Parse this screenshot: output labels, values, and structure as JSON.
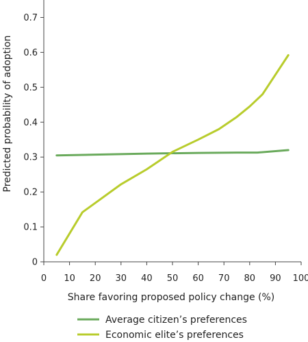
{
  "chart_data": {
    "type": "line",
    "title": "",
    "xlabel": "Share favoring proposed policy change (%)",
    "ylabel": "Predicted probability of adoption",
    "xlim": [
      0,
      100
    ],
    "ylim": [
      0,
      0.75
    ],
    "xticks": [
      0,
      10,
      20,
      30,
      40,
      50,
      60,
      70,
      80,
      90,
      100
    ],
    "yticks": [
      0,
      0.1,
      0.2,
      0.3,
      0.4,
      0.5,
      0.6,
      0.7
    ],
    "ytick_labels": [
      "0",
      "0.1",
      "0.2",
      "0.3",
      "0.4",
      "0.5",
      "0.6",
      "0.7"
    ],
    "grid": false,
    "legend_position": "bottom",
    "series": [
      {
        "name": "Average citizen’s preferences",
        "color": "#6aaa5c",
        "points": [
          [
            5,
            0.305
          ],
          [
            20,
            0.307
          ],
          [
            40,
            0.31
          ],
          [
            60,
            0.312
          ],
          [
            75,
            0.313
          ],
          [
            83,
            0.313
          ],
          [
            95,
            0.32
          ]
        ]
      },
      {
        "name": "Economic elite’s preferences",
        "color": "#b8cc2c",
        "points": [
          [
            5,
            0.02
          ],
          [
            15,
            0.142
          ],
          [
            30,
            0.222
          ],
          [
            40,
            0.265
          ],
          [
            50,
            0.315
          ],
          [
            60,
            0.35
          ],
          [
            68,
            0.38
          ],
          [
            75,
            0.415
          ],
          [
            80,
            0.445
          ],
          [
            85,
            0.48
          ],
          [
            95,
            0.592
          ]
        ]
      }
    ]
  }
}
